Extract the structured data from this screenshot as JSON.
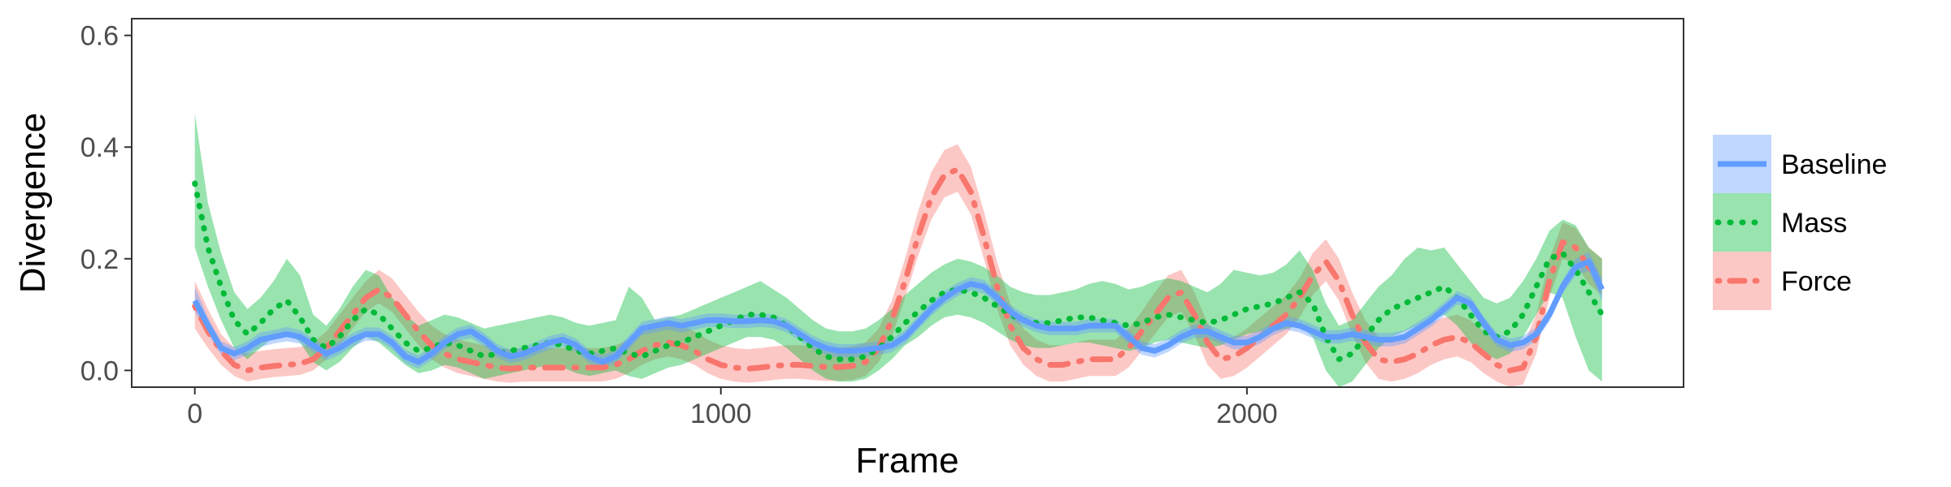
{
  "chart_data": {
    "type": "line",
    "title": "",
    "xlabel": "Frame",
    "ylabel": "Divergence",
    "xlim": [
      -120,
      2830
    ],
    "ylim": [
      -0.03,
      0.63
    ],
    "x_ticks": [
      0,
      1000,
      2000
    ],
    "y_ticks": [
      0.0,
      0.2,
      0.4,
      0.6
    ],
    "x_tick_labels": [
      "0",
      "1000",
      "2000"
    ],
    "y_tick_labels": [
      "0.0",
      "0.2",
      "0.4",
      "0.6"
    ],
    "grid": false,
    "legend_position": "right",
    "x": [
      0,
      25,
      50,
      75,
      100,
      125,
      150,
      175,
      200,
      225,
      250,
      275,
      300,
      325,
      350,
      375,
      400,
      425,
      450,
      475,
      500,
      525,
      550,
      575,
      600,
      625,
      650,
      675,
      700,
      725,
      750,
      775,
      800,
      825,
      850,
      875,
      900,
      925,
      950,
      975,
      1000,
      1025,
      1050,
      1075,
      1100,
      1125,
      1150,
      1175,
      1200,
      1225,
      1250,
      1275,
      1300,
      1325,
      1350,
      1375,
      1400,
      1425,
      1450,
      1475,
      1500,
      1525,
      1550,
      1575,
      1600,
      1625,
      1650,
      1675,
      1700,
      1725,
      1750,
      1775,
      1800,
      1825,
      1850,
      1875,
      1900,
      1925,
      1950,
      1975,
      2000,
      2025,
      2050,
      2075,
      2100,
      2125,
      2150,
      2175,
      2200,
      2225,
      2250,
      2275,
      2300,
      2325,
      2350,
      2375,
      2400,
      2425,
      2450,
      2475,
      2500,
      2525,
      2550,
      2575,
      2600,
      2625,
      2650,
      2675
    ],
    "series": [
      {
        "name": "Baseline",
        "color": "#619CFF",
        "line_style": "solid",
        "values": [
          0.125,
          0.08,
          0.04,
          0.03,
          0.04,
          0.055,
          0.06,
          0.065,
          0.06,
          0.045,
          0.03,
          0.04,
          0.055,
          0.065,
          0.065,
          0.05,
          0.025,
          0.015,
          0.03,
          0.05,
          0.065,
          0.07,
          0.055,
          0.035,
          0.025,
          0.03,
          0.04,
          0.05,
          0.055,
          0.045,
          0.025,
          0.015,
          0.025,
          0.05,
          0.075,
          0.08,
          0.085,
          0.08,
          0.085,
          0.09,
          0.09,
          0.088,
          0.088,
          0.09,
          0.088,
          0.08,
          0.065,
          0.05,
          0.04,
          0.035,
          0.035,
          0.037,
          0.04,
          0.045,
          0.06,
          0.085,
          0.11,
          0.13,
          0.145,
          0.155,
          0.15,
          0.13,
          0.105,
          0.09,
          0.08,
          0.075,
          0.075,
          0.075,
          0.08,
          0.08,
          0.08,
          0.06,
          0.04,
          0.035,
          0.045,
          0.06,
          0.07,
          0.07,
          0.06,
          0.05,
          0.05,
          0.06,
          0.075,
          0.085,
          0.08,
          0.07,
          0.06,
          0.06,
          0.065,
          0.06,
          0.055,
          0.055,
          0.06,
          0.075,
          0.09,
          0.11,
          0.13,
          0.12,
          0.085,
          0.055,
          0.045,
          0.05,
          0.065,
          0.1,
          0.15,
          0.185,
          0.195,
          0.145
        ],
        "lower": [
          0.105,
          0.065,
          0.028,
          0.018,
          0.028,
          0.042,
          0.048,
          0.052,
          0.048,
          0.033,
          0.018,
          0.028,
          0.043,
          0.053,
          0.053,
          0.038,
          0.013,
          0.003,
          0.018,
          0.038,
          0.053,
          0.058,
          0.043,
          0.023,
          0.013,
          0.018,
          0.028,
          0.038,
          0.043,
          0.033,
          0.013,
          0.003,
          0.013,
          0.038,
          0.063,
          0.068,
          0.073,
          0.068,
          0.073,
          0.078,
          0.078,
          0.076,
          0.076,
          0.078,
          0.076,
          0.068,
          0.053,
          0.038,
          0.028,
          0.023,
          0.023,
          0.025,
          0.028,
          0.033,
          0.048,
          0.073,
          0.098,
          0.118,
          0.133,
          0.143,
          0.138,
          0.118,
          0.093,
          0.078,
          0.068,
          0.063,
          0.063,
          0.063,
          0.068,
          0.068,
          0.068,
          0.048,
          0.028,
          0.023,
          0.033,
          0.048,
          0.058,
          0.058,
          0.048,
          0.038,
          0.038,
          0.048,
          0.063,
          0.073,
          0.068,
          0.058,
          0.048,
          0.048,
          0.053,
          0.048,
          0.043,
          0.043,
          0.048,
          0.063,
          0.078,
          0.098,
          0.118,
          0.108,
          0.073,
          0.043,
          0.033,
          0.038,
          0.053,
          0.088,
          0.138,
          0.17,
          0.178,
          0.125
        ],
        "upper": [
          0.15,
          0.095,
          0.052,
          0.042,
          0.052,
          0.068,
          0.072,
          0.078,
          0.072,
          0.057,
          0.042,
          0.052,
          0.067,
          0.077,
          0.077,
          0.062,
          0.037,
          0.027,
          0.042,
          0.062,
          0.077,
          0.082,
          0.067,
          0.047,
          0.037,
          0.042,
          0.052,
          0.062,
          0.067,
          0.057,
          0.037,
          0.027,
          0.037,
          0.062,
          0.087,
          0.092,
          0.097,
          0.092,
          0.097,
          0.102,
          0.102,
          0.1,
          0.1,
          0.102,
          0.1,
          0.092,
          0.077,
          0.062,
          0.052,
          0.047,
          0.047,
          0.049,
          0.052,
          0.057,
          0.072,
          0.097,
          0.122,
          0.142,
          0.157,
          0.167,
          0.162,
          0.142,
          0.117,
          0.102,
          0.092,
          0.087,
          0.087,
          0.087,
          0.092,
          0.092,
          0.092,
          0.072,
          0.052,
          0.047,
          0.057,
          0.072,
          0.082,
          0.082,
          0.072,
          0.062,
          0.062,
          0.072,
          0.087,
          0.097,
          0.092,
          0.082,
          0.072,
          0.072,
          0.077,
          0.072,
          0.067,
          0.067,
          0.072,
          0.087,
          0.102,
          0.122,
          0.142,
          0.132,
          0.097,
          0.067,
          0.057,
          0.062,
          0.077,
          0.112,
          0.162,
          0.2,
          0.212,
          0.165
        ]
      },
      {
        "name": "Mass",
        "color": "#00BA38",
        "line_style": "dotted",
        "values": [
          0.335,
          0.22,
          0.15,
          0.09,
          0.065,
          0.085,
          0.11,
          0.125,
          0.095,
          0.055,
          0.04,
          0.06,
          0.09,
          0.11,
          0.1,
          0.075,
          0.05,
          0.035,
          0.04,
          0.05,
          0.045,
          0.035,
          0.025,
          0.03,
          0.035,
          0.04,
          0.045,
          0.05,
          0.045,
          0.035,
          0.03,
          0.035,
          0.04,
          0.03,
          0.025,
          0.035,
          0.045,
          0.05,
          0.06,
          0.07,
          0.08,
          0.09,
          0.1,
          0.1,
          0.095,
          0.08,
          0.06,
          0.04,
          0.025,
          0.02,
          0.02,
          0.025,
          0.04,
          0.06,
          0.085,
          0.105,
          0.125,
          0.14,
          0.145,
          0.14,
          0.13,
          0.115,
          0.1,
          0.09,
          0.085,
          0.085,
          0.09,
          0.095,
          0.095,
          0.09,
          0.085,
          0.08,
          0.085,
          0.095,
          0.1,
          0.095,
          0.09,
          0.085,
          0.09,
          0.1,
          0.11,
          0.115,
          0.12,
          0.13,
          0.14,
          0.12,
          0.06,
          0.02,
          0.03,
          0.06,
          0.09,
          0.11,
          0.12,
          0.13,
          0.14,
          0.15,
          0.13,
          0.1,
          0.07,
          0.06,
          0.07,
          0.1,
          0.15,
          0.2,
          0.21,
          0.18,
          0.14,
          0.1
        ],
        "lower": [
          0.22,
          0.15,
          0.09,
          0.04,
          0.02,
          0.04,
          0.06,
          0.07,
          0.05,
          0.015,
          0.0,
          0.015,
          0.04,
          0.06,
          0.05,
          0.03,
          0.01,
          -0.005,
          0.0,
          0.01,
          0.005,
          -0.005,
          -0.015,
          -0.01,
          -0.005,
          0.0,
          0.005,
          0.01,
          0.005,
          -0.005,
          -0.01,
          -0.005,
          0.0,
          -0.01,
          -0.015,
          -0.005,
          0.005,
          0.01,
          0.02,
          0.03,
          0.04,
          0.05,
          0.06,
          0.06,
          0.055,
          0.04,
          0.02,
          0.0,
          -0.015,
          -0.02,
          -0.02,
          -0.015,
          0.0,
          0.02,
          0.045,
          0.06,
          0.08,
          0.095,
          0.1,
          0.095,
          0.085,
          0.07,
          0.055,
          0.045,
          0.04,
          0.04,
          0.045,
          0.05,
          0.05,
          0.045,
          0.04,
          0.035,
          0.04,
          0.05,
          0.055,
          0.05,
          0.045,
          0.04,
          0.045,
          0.055,
          0.065,
          0.07,
          0.07,
          0.075,
          0.08,
          0.06,
          0.0,
          -0.03,
          -0.02,
          0.01,
          0.04,
          0.06,
          0.07,
          0.08,
          0.09,
          0.1,
          0.08,
          0.05,
          0.03,
          0.02,
          0.03,
          0.06,
          0.1,
          0.14,
          0.13,
          0.06,
          0.0,
          -0.02
        ],
        "upper": [
          0.46,
          0.3,
          0.21,
          0.14,
          0.11,
          0.13,
          0.16,
          0.2,
          0.17,
          0.1,
          0.08,
          0.11,
          0.15,
          0.18,
          0.17,
          0.13,
          0.1,
          0.08,
          0.09,
          0.1,
          0.095,
          0.085,
          0.075,
          0.08,
          0.085,
          0.09,
          0.095,
          0.1,
          0.095,
          0.085,
          0.08,
          0.085,
          0.09,
          0.15,
          0.13,
          0.09,
          0.095,
          0.1,
          0.11,
          0.12,
          0.13,
          0.14,
          0.15,
          0.16,
          0.145,
          0.13,
          0.11,
          0.09,
          0.075,
          0.07,
          0.07,
          0.075,
          0.09,
          0.11,
          0.135,
          0.155,
          0.175,
          0.19,
          0.2,
          0.195,
          0.185,
          0.17,
          0.15,
          0.14,
          0.135,
          0.135,
          0.14,
          0.145,
          0.155,
          0.16,
          0.155,
          0.145,
          0.15,
          0.16,
          0.165,
          0.16,
          0.15,
          0.14,
          0.155,
          0.18,
          0.175,
          0.17,
          0.175,
          0.19,
          0.215,
          0.18,
          0.12,
          0.08,
          0.09,
          0.12,
          0.15,
          0.17,
          0.2,
          0.22,
          0.215,
          0.22,
          0.19,
          0.16,
          0.13,
          0.12,
          0.13,
          0.16,
          0.2,
          0.25,
          0.27,
          0.26,
          0.22,
          0.2
        ]
      },
      {
        "name": "Force",
        "color": "#F8766D",
        "line_style": "dotdash",
        "values": [
          0.115,
          0.07,
          0.035,
          0.01,
          0.0,
          0.005,
          0.008,
          0.01,
          0.012,
          0.02,
          0.04,
          0.07,
          0.1,
          0.13,
          0.145,
          0.13,
          0.1,
          0.07,
          0.045,
          0.03,
          0.02,
          0.015,
          0.01,
          0.005,
          0.003,
          0.005,
          0.005,
          0.005,
          0.005,
          0.005,
          0.005,
          0.005,
          0.01,
          0.02,
          0.035,
          0.045,
          0.05,
          0.045,
          0.035,
          0.02,
          0.01,
          0.005,
          0.003,
          0.005,
          0.008,
          0.01,
          0.01,
          0.008,
          0.006,
          0.006,
          0.008,
          0.015,
          0.04,
          0.09,
          0.16,
          0.24,
          0.31,
          0.35,
          0.36,
          0.32,
          0.24,
          0.15,
          0.08,
          0.04,
          0.02,
          0.01,
          0.01,
          0.015,
          0.02,
          0.02,
          0.02,
          0.04,
          0.07,
          0.1,
          0.13,
          0.14,
          0.1,
          0.05,
          0.02,
          0.025,
          0.04,
          0.06,
          0.08,
          0.1,
          0.13,
          0.17,
          0.195,
          0.16,
          0.1,
          0.05,
          0.02,
          0.015,
          0.02,
          0.03,
          0.045,
          0.055,
          0.06,
          0.05,
          0.03,
          0.01,
          0.0,
          0.005,
          0.06,
          0.16,
          0.23,
          0.22,
          0.185,
          0.165
        ],
        "lower": [
          0.075,
          0.04,
          0.01,
          -0.01,
          -0.02,
          -0.015,
          -0.012,
          -0.01,
          -0.008,
          0.0,
          0.02,
          0.045,
          0.075,
          0.105,
          0.12,
          0.105,
          0.075,
          0.045,
          0.02,
          0.005,
          -0.005,
          -0.01,
          -0.015,
          -0.02,
          -0.022,
          -0.02,
          -0.02,
          -0.02,
          -0.02,
          -0.02,
          -0.02,
          -0.02,
          -0.015,
          -0.005,
          0.01,
          0.02,
          0.025,
          0.02,
          0.01,
          -0.005,
          -0.015,
          -0.02,
          -0.022,
          -0.02,
          -0.017,
          -0.015,
          -0.015,
          -0.017,
          -0.019,
          -0.019,
          -0.017,
          -0.01,
          0.015,
          0.06,
          0.13,
          0.205,
          0.27,
          0.31,
          0.32,
          0.28,
          0.2,
          0.11,
          0.045,
          0.01,
          -0.01,
          -0.02,
          -0.02,
          -0.015,
          -0.01,
          -0.01,
          -0.01,
          0.005,
          0.035,
          0.065,
          0.095,
          0.105,
          0.065,
          0.01,
          -0.015,
          -0.01,
          0.005,
          0.025,
          0.045,
          0.065,
          0.095,
          0.135,
          0.16,
          0.125,
          0.065,
          0.015,
          -0.015,
          -0.02,
          -0.015,
          -0.005,
          0.01,
          0.02,
          0.025,
          0.015,
          -0.005,
          -0.02,
          -0.03,
          -0.025,
          0.03,
          0.13,
          0.2,
          0.19,
          0.155,
          0.135
        ],
        "upper": [
          0.16,
          0.11,
          0.065,
          0.04,
          0.03,
          0.035,
          0.038,
          0.04,
          0.042,
          0.05,
          0.07,
          0.1,
          0.13,
          0.16,
          0.18,
          0.165,
          0.135,
          0.105,
          0.08,
          0.065,
          0.055,
          0.05,
          0.045,
          0.04,
          0.038,
          0.04,
          0.04,
          0.04,
          0.04,
          0.04,
          0.04,
          0.04,
          0.045,
          0.055,
          0.07,
          0.08,
          0.085,
          0.08,
          0.07,
          0.055,
          0.045,
          0.04,
          0.038,
          0.04,
          0.043,
          0.045,
          0.045,
          0.043,
          0.041,
          0.041,
          0.043,
          0.05,
          0.075,
          0.125,
          0.2,
          0.285,
          0.355,
          0.395,
          0.405,
          0.365,
          0.285,
          0.195,
          0.12,
          0.075,
          0.055,
          0.045,
          0.045,
          0.05,
          0.055,
          0.055,
          0.055,
          0.075,
          0.105,
          0.14,
          0.17,
          0.18,
          0.14,
          0.085,
          0.055,
          0.06,
          0.075,
          0.095,
          0.115,
          0.135,
          0.165,
          0.21,
          0.235,
          0.2,
          0.14,
          0.09,
          0.06,
          0.055,
          0.06,
          0.07,
          0.085,
          0.095,
          0.1,
          0.09,
          0.07,
          0.05,
          0.04,
          0.045,
          0.1,
          0.2,
          0.265,
          0.255,
          0.22,
          0.2
        ]
      }
    ]
  }
}
